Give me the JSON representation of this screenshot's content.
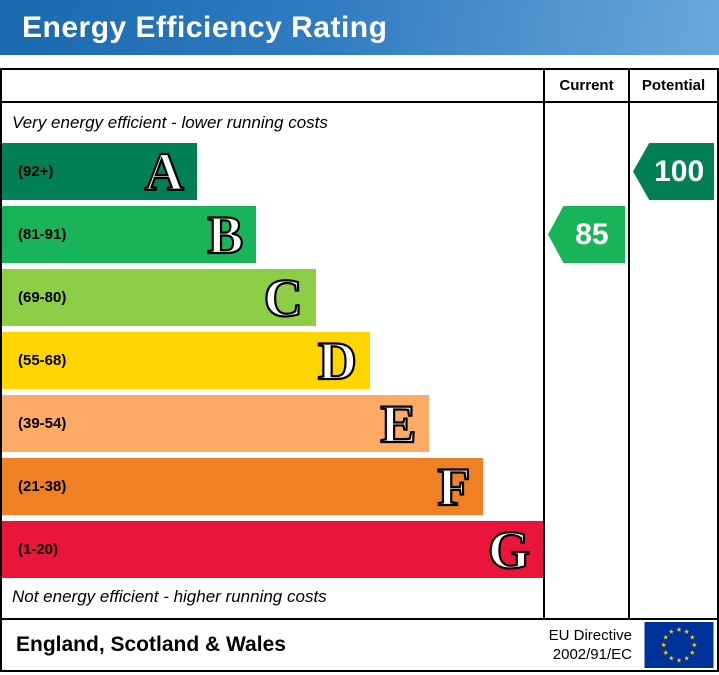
{
  "header": {
    "title": "Energy Efficiency Rating",
    "bg_color": "#2f7cc0",
    "text_color": "#ffffff"
  },
  "columns": {
    "current": "Current",
    "potential": "Potential"
  },
  "notes": {
    "top": "Very energy efficient - lower running costs",
    "bottom": "Not energy efficient - higher running costs"
  },
  "bands": [
    {
      "letter": "A",
      "range": "(92+)",
      "color": "#008054",
      "width_pct": 36
    },
    {
      "letter": "B",
      "range": "(81-91)",
      "color": "#19b459",
      "width_pct": 47
    },
    {
      "letter": "C",
      "range": "(69-80)",
      "color": "#8dce46",
      "width_pct": 58
    },
    {
      "letter": "D",
      "range": "(55-68)",
      "color": "#ffd500",
      "width_pct": 68
    },
    {
      "letter": "E",
      "range": "(39-54)",
      "color": "#fcaa65",
      "width_pct": 79
    },
    {
      "letter": "F",
      "range": "(21-38)",
      "color": "#ef8023",
      "width_pct": 89
    },
    {
      "letter": "G",
      "range": "(1-20)",
      "color": "#e9153b",
      "width_pct": 100
    }
  ],
  "ratings": {
    "current": {
      "value": "85",
      "band": "B",
      "color": "#19b459"
    },
    "potential": {
      "value": "100",
      "band": "A",
      "color": "#008054"
    }
  },
  "footer": {
    "region": "England, Scotland & Wales",
    "directive_line1": "EU Directive",
    "directive_line2": "2002/91/EC"
  },
  "chart_data": {
    "type": "bar",
    "title": "Energy Efficiency Rating",
    "categories": [
      "A",
      "B",
      "C",
      "D",
      "E",
      "F",
      "G"
    ],
    "ranges": [
      "92+",
      "81-91",
      "69-80",
      "55-68",
      "39-54",
      "21-38",
      "1-20"
    ],
    "colors": [
      "#008054",
      "#19b459",
      "#8dce46",
      "#ffd500",
      "#fcaa65",
      "#ef8023",
      "#e9153b"
    ],
    "bar_width_pct": [
      36,
      47,
      58,
      68,
      79,
      89,
      100
    ],
    "current_rating": 85,
    "current_band": "B",
    "potential_rating": 100,
    "potential_band": "A",
    "annotations": [
      "Very energy efficient - lower running costs",
      "Not energy efficient - higher running costs"
    ],
    "region_note": "England, Scotland & Wales",
    "directive": "EU Directive 2002/91/EC"
  }
}
